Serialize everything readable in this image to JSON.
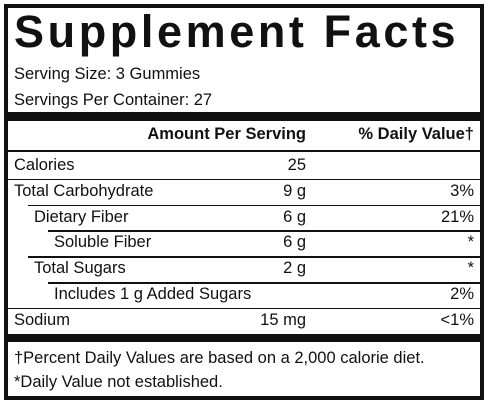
{
  "header": {
    "title": "Supplement Facts",
    "serving_size": "Serving Size: 3 Gummies",
    "servings_per_container": "Servings Per Container: 27"
  },
  "table": {
    "columns": [
      "Amount Per Serving",
      "% Daily Value†"
    ],
    "rows": [
      [
        "Calories",
        "25",
        ""
      ],
      [
        "Total Carbohydrate",
        "9 g",
        "3%"
      ],
      [
        "Dietary Fiber",
        "6 g",
        "21%"
      ],
      [
        "Soluble Fiber",
        "6 g",
        "*"
      ],
      [
        "Total Sugars",
        "2 g",
        "*"
      ],
      [
        "Includes 1 g Added Sugars",
        "",
        "2%"
      ],
      [
        "Sodium",
        "15 mg",
        "<1%"
      ]
    ]
  },
  "footnotes": [
    "†Percent Daily Values are based on a 2,000 calorie diet.",
    "*Daily Value not established."
  ]
}
